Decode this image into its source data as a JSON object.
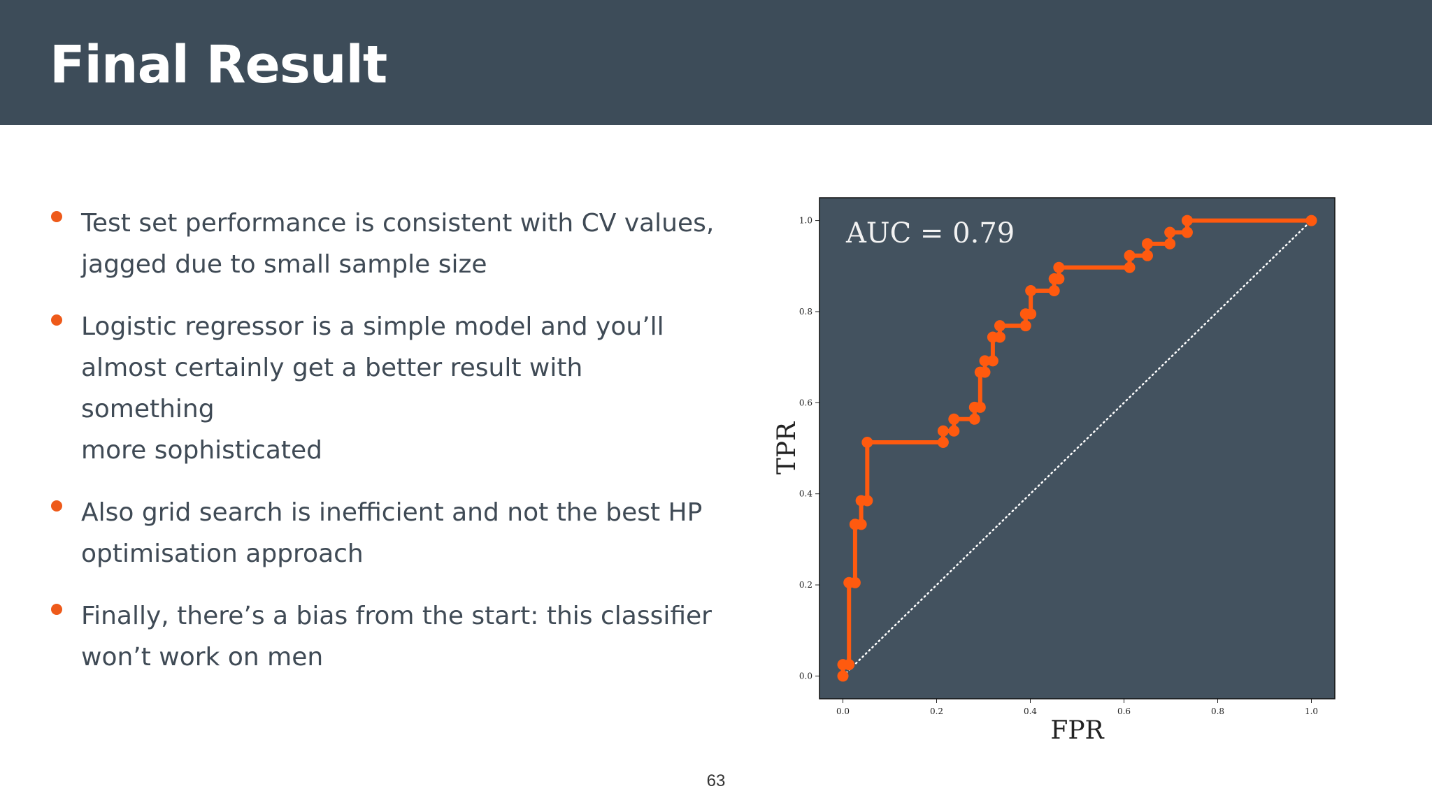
{
  "slide": {
    "title": "Final Result",
    "page_number": "63",
    "bullets": [
      {
        "lines": [
          "Test set performance is consistent with CV values,",
          "jagged due to small sample size"
        ]
      },
      {
        "lines": [
          "Logistic regressor is a simple model and you’ll",
          "almost certainly get a better result with something",
          "more sophisticated"
        ]
      },
      {
        "lines": [
          "Also grid search is inefficient and not the best HP",
          "optimisation approach"
        ]
      },
      {
        "lines": [
          "Finally, there’s a bias from the start: this classifier",
          "won’t work on men"
        ]
      }
    ]
  },
  "colors": {
    "header_bg": "#3d4c59",
    "accent": "#ee5a1a",
    "plot_bg": "#43525f",
    "curve": "#ff5a0f",
    "diagonal": "#ffffff"
  },
  "chart_data": {
    "type": "line",
    "title": "",
    "annotation": "AUC = 0.79",
    "xlabel": "FPR",
    "ylabel": "TPR",
    "xlim": [
      -0.05,
      1.05
    ],
    "ylim": [
      -0.05,
      1.05
    ],
    "xticks": [
      0.0,
      0.2,
      0.4,
      0.6,
      0.8,
      1.0
    ],
    "yticks": [
      0.0,
      0.2,
      0.4,
      0.6,
      0.8,
      1.0
    ],
    "xtick_labels": [
      "0.0",
      "0.2",
      "0.4",
      "0.6",
      "0.8",
      "1.0"
    ],
    "ytick_labels": [
      "0.0",
      "0.2",
      "0.4",
      "0.6",
      "0.8",
      "1.0"
    ],
    "grid": false,
    "series": [
      {
        "style": "step line with circle markers",
        "x": [
          0.0,
          0.0,
          0.013,
          0.013,
          0.026,
          0.026,
          0.026,
          0.039,
          0.039,
          0.052,
          0.052,
          0.214,
          0.214,
          0.237,
          0.237,
          0.281,
          0.281,
          0.293,
          0.293,
          0.303,
          0.303,
          0.32,
          0.32,
          0.335,
          0.335,
          0.39,
          0.39,
          0.401,
          0.401,
          0.451,
          0.451,
          0.461,
          0.461,
          0.612,
          0.612,
          0.65,
          0.65,
          0.698,
          0.698,
          0.735,
          0.735,
          1.0
        ],
        "y": [
          0.0,
          0.025,
          0.025,
          0.205,
          0.205,
          0.333,
          0.333,
          0.333,
          0.385,
          0.385,
          0.513,
          0.513,
          0.538,
          0.538,
          0.564,
          0.564,
          0.59,
          0.59,
          0.667,
          0.667,
          0.692,
          0.692,
          0.744,
          0.744,
          0.769,
          0.769,
          0.795,
          0.795,
          0.846,
          0.846,
          0.872,
          0.872,
          0.897,
          0.897,
          0.923,
          0.923,
          0.949,
          0.949,
          0.974,
          0.974,
          1.0,
          1.0
        ]
      },
      {
        "style": "dotted diagonal",
        "x": [
          0.0,
          1.0
        ],
        "y": [
          0.0,
          1.0
        ]
      }
    ]
  }
}
